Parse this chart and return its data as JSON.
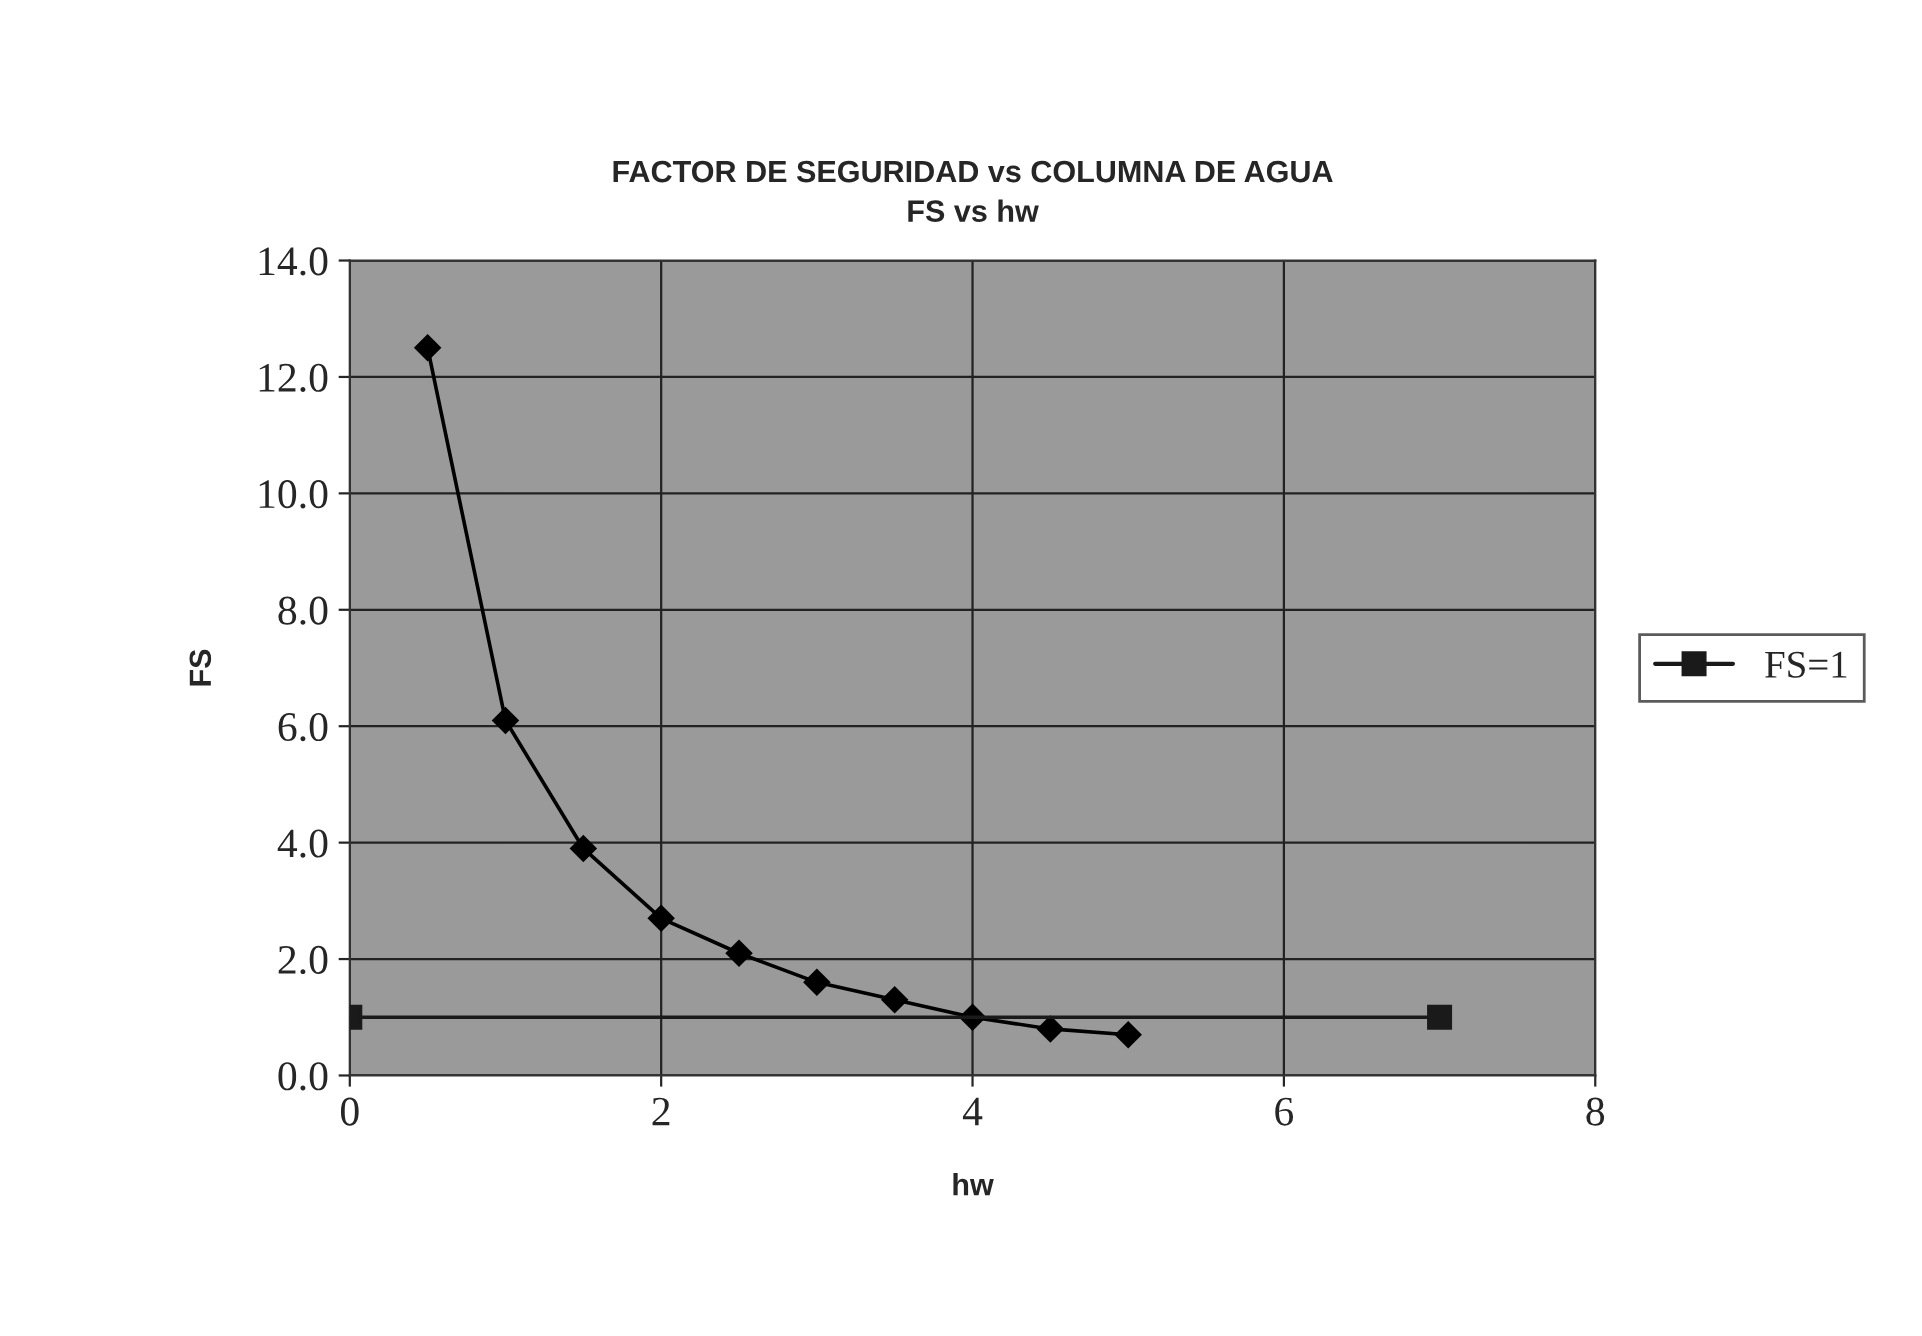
{
  "chart_data": {
    "type": "line",
    "title": "FACTOR DE SEGURIDAD vs COLUMNA DE AGUA\nFS vs hw",
    "xlabel": "hw",
    "ylabel": "FS",
    "series": [
      {
        "x": [
          0.5,
          1.0,
          1.5,
          2.0,
          2.5,
          3.0,
          3.5,
          4.0,
          4.5,
          5.0
        ],
        "values": [
          12.5,
          6.1,
          3.9,
          2.7,
          2.1,
          1.6,
          1.3,
          1.0,
          0.8,
          0.7
        ],
        "color": "#000000",
        "marker": "diamond"
      },
      {
        "name": "FS=1",
        "x": [
          0,
          7
        ],
        "values": [
          1.0,
          1.0
        ],
        "color": "#1a1a1a",
        "marker": "square"
      }
    ],
    "xlim": [
      0,
      8
    ],
    "xticks": [
      0,
      2,
      4,
      6,
      8
    ],
    "ylim": [
      0,
      14
    ],
    "yticks": [
      {
        "value": 0,
        "label": "0.0"
      },
      {
        "value": 2,
        "label": "2.0"
      },
      {
        "value": 4,
        "label": "4.0"
      },
      {
        "value": 6,
        "label": "6.0"
      },
      {
        "value": 8,
        "label": "8.0"
      },
      {
        "value": 10,
        "label": "10.0"
      },
      {
        "value": 12,
        "label": "12.0"
      },
      {
        "value": 14,
        "label": "14.0"
      }
    ],
    "grid": true,
    "legend": "right",
    "line_style": "solid"
  }
}
